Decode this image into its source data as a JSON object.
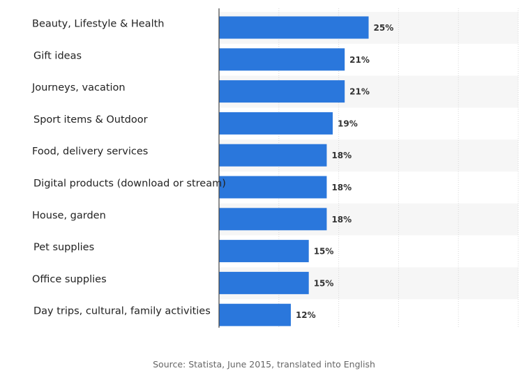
{
  "chart_data": {
    "type": "bar",
    "orientation": "horizontal",
    "categories": [
      "Beauty, Lifestyle & Health",
      "Gift ideas",
      "Journeys, vacation",
      "Sport items & Outdoor",
      "Food, delivery services",
      "Digital products (download or stream)",
      "House, garden",
      "Pet supplies",
      "Office supplies",
      "Day trips, cultural, family activities"
    ],
    "values": [
      25,
      21,
      21,
      19,
      18,
      18,
      18,
      15,
      15,
      12
    ],
    "value_labels": [
      "25%",
      "21%",
      "21%",
      "19%",
      "18%",
      "18%",
      "18%",
      "15%",
      "15%",
      "12%"
    ],
    "xlim": [
      0,
      50
    ],
    "x_gridlines": [
      0,
      10,
      20,
      30,
      40,
      50
    ],
    "grid": true,
    "bar_color": "#2a77dc",
    "band_color": "#f6f6f6"
  },
  "source": "Source: Statista, June 2015, translated into English"
}
